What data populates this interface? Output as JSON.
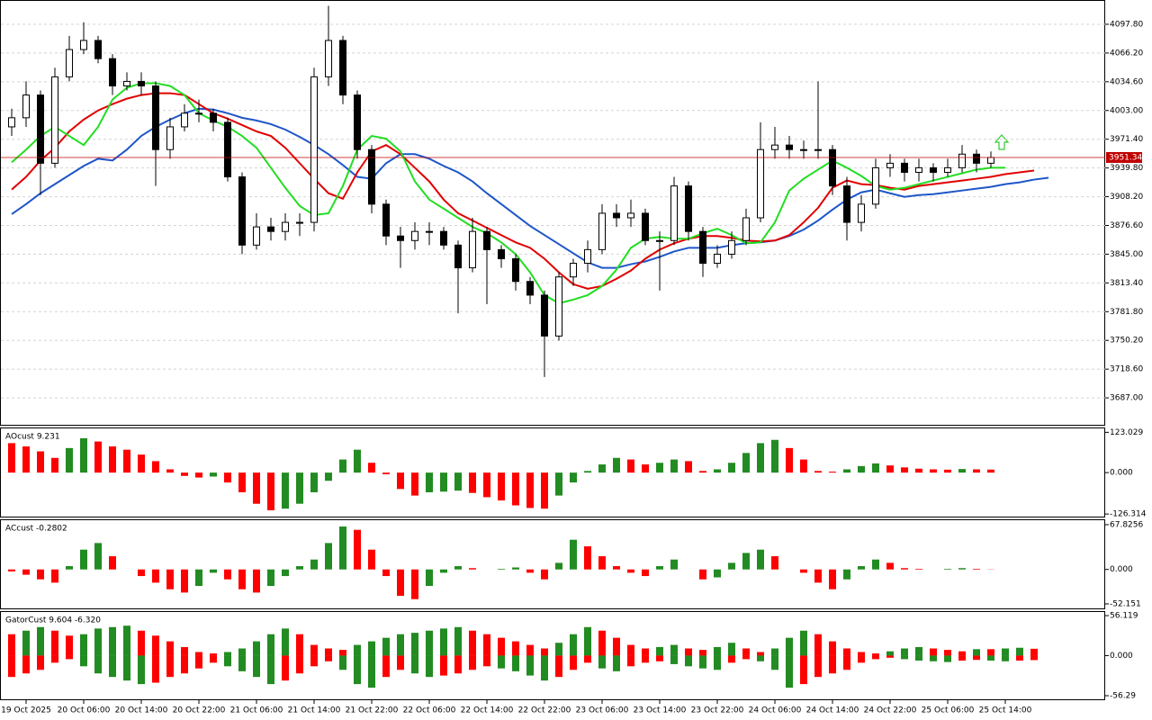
{
  "chart_data": [
    {
      "type": "candlestick",
      "categories": [
        null,
        "19 Oct 2025",
        null,
        null,
        null,
        "20 Oct 06:00",
        null,
        null,
        null,
        "20 Oct 14:00",
        null,
        null,
        null,
        "20 Oct 22:00",
        null,
        null,
        null,
        "21 Oct 06:00",
        null,
        null,
        null,
        "21 Oct 14:00",
        null,
        null,
        null,
        "21 Oct 22:00",
        null,
        null,
        null,
        "22 Oct 06:00",
        null,
        null,
        null,
        "22 Oct 14:00",
        null,
        null,
        null,
        "22 Oct 22:00",
        null,
        null,
        null,
        "23 Oct 06:00",
        null,
        null,
        null,
        "23 Oct 14:00",
        null,
        null,
        null,
        "23 Oct 22:00",
        null,
        null,
        null,
        "24 Oct 06:00",
        null,
        null,
        null,
        "24 Oct 14:00",
        null,
        null,
        null,
        "24 Oct 22:00",
        null,
        null,
        null,
        "25 Oct 06:00",
        null,
        null,
        null,
        "25 Oct 14:00",
        null,
        null,
        null
      ],
      "open": [
        3985,
        3995,
        4020,
        3945,
        4040,
        4070,
        4080,
        4060,
        4030,
        4035,
        4030,
        3960,
        3985,
        4000,
        4000,
        3990,
        3930,
        3855,
        3875,
        3870,
        3880,
        3880,
        4040,
        4080,
        4020,
        3960,
        3900,
        3865,
        3860,
        3870,
        3870,
        3855,
        3830,
        3870,
        3850,
        3840,
        3815,
        3800,
        3755,
        3820,
        3835,
        3850,
        3890,
        3885,
        3890,
        3860,
        3860,
        3920,
        3870,
        3835,
        3845,
        3860,
        3885,
        3960,
        3965,
        3960,
        3960,
        3960,
        3920,
        3880,
        3900,
        3940,
        3945,
        3935,
        3940,
        3935,
        3940,
        3955,
        3945,
        null,
        null,
        null,
        null
      ],
      "high": [
        4005,
        4035,
        4025,
        4050,
        4085,
        4100,
        4085,
        4065,
        4045,
        4045,
        4035,
        3995,
        4010,
        4015,
        4005,
        3995,
        3935,
        3890,
        3885,
        3890,
        3890,
        4050,
        4118,
        4085,
        4025,
        3965,
        3905,
        3875,
        3880,
        3880,
        3875,
        3860,
        3885,
        3875,
        3855,
        3845,
        3820,
        3805,
        3825,
        3840,
        3860,
        3900,
        3900,
        3905,
        3895,
        3870,
        3930,
        3925,
        3875,
        3855,
        3870,
        3895,
        3990,
        3985,
        3975,
        3970,
        4035,
        3965,
        3930,
        3910,
        3950,
        3955,
        3950,
        3950,
        3945,
        3950,
        3965,
        3960,
        3958,
        null,
        null,
        null,
        null
      ],
      "low": [
        3975,
        3985,
        3910,
        3940,
        4035,
        4065,
        4055,
        4020,
        4025,
        4020,
        3920,
        3950,
        3980,
        3990,
        3980,
        3925,
        3845,
        3850,
        3860,
        3860,
        3865,
        3870,
        4030,
        4010,
        3950,
        3890,
        3855,
        3830,
        3850,
        3855,
        3850,
        3780,
        3825,
        3790,
        3830,
        3805,
        3790,
        3710,
        3750,
        3810,
        3825,
        3845,
        3875,
        3875,
        3855,
        3805,
        3855,
        3860,
        3820,
        3830,
        3840,
        3855,
        3880,
        3950,
        3950,
        3950,
        3950,
        3910,
        3860,
        3870,
        3895,
        3930,
        3925,
        3925,
        3925,
        3930,
        3935,
        3935,
        3940,
        null,
        null,
        null,
        null
      ],
      "close": [
        3995,
        4020,
        3945,
        4040,
        4070,
        4080,
        4060,
        4030,
        4035,
        4030,
        3960,
        3985,
        4000,
        4000,
        3990,
        3930,
        3855,
        3875,
        3870,
        3880,
        3880,
        4040,
        4080,
        4020,
        3960,
        3900,
        3865,
        3860,
        3870,
        3870,
        3855,
        3830,
        3870,
        3850,
        3840,
        3815,
        3800,
        3755,
        3820,
        3835,
        3850,
        3890,
        3885,
        3890,
        3860,
        3860,
        3920,
        3870,
        3835,
        3845,
        3860,
        3885,
        3960,
        3965,
        3960,
        3960,
        3960,
        3920,
        3880,
        3900,
        3940,
        3945,
        3935,
        3940,
        3935,
        3940,
        3955,
        3945,
        3951.34,
        null,
        null,
        null,
        null
      ],
      "up_color": "#ffffff",
      "down_color": "#000000",
      "outline_color": "#000000",
      "series": [
        {
          "color": "#1e56c8",
          "values": [
            3889,
            3900,
            3912,
            3922,
            3932,
            3942,
            3950,
            3948,
            3960,
            3975,
            3985,
            3993,
            4000,
            4005,
            4004,
            4000,
            3995,
            3992,
            3988,
            3982,
            3974,
            3965,
            3955,
            3943,
            3930,
            3928,
            3945,
            3955,
            3955,
            3950,
            3942,
            3935,
            3925,
            3912,
            3900,
            3888,
            3876,
            3866,
            3856,
            3846,
            3836,
            3830,
            3830,
            3834,
            3837,
            3842,
            3848,
            3852,
            3852,
            3852,
            3855,
            3857,
            3858,
            3860,
            3865,
            3872,
            3882,
            3894,
            3905,
            3913,
            3916,
            3912,
            3908,
            3910,
            3911,
            3913,
            3915,
            3917,
            3919,
            3922,
            3924,
            3927,
            3929
          ]
        },
        {
          "color": "#e00000",
          "values": [
            3916,
            3930,
            3948,
            3962,
            3980,
            3993,
            4003,
            4010,
            4016,
            4020,
            4022,
            4022,
            4020,
            4010,
            4000,
            3994,
            3987,
            3980,
            3975,
            3962,
            3945,
            3928,
            3912,
            3906,
            3935,
            3958,
            3965,
            3955,
            3940,
            3925,
            3905,
            3890,
            3882,
            3874,
            3866,
            3858,
            3852,
            3840,
            3825,
            3812,
            3807,
            3810,
            3818,
            3827,
            3840,
            3850,
            3857,
            3862,
            3865,
            3865,
            3863,
            3860,
            3859,
            3860,
            3866,
            3880,
            3896,
            3918,
            3926,
            3922,
            3921,
            3918,
            3916,
            3920,
            3922,
            3924,
            3926,
            3928,
            3930,
            3933,
            3935,
            3937,
            null
          ]
        },
        {
          "color": "#22dd22",
          "values": [
            3946,
            3960,
            3975,
            3985,
            3975,
            3965,
            3985,
            4015,
            4028,
            4033,
            4033,
            4030,
            4020,
            4000,
            3992,
            3985,
            3975,
            3962,
            3940,
            3918,
            3898,
            3888,
            3890,
            3920,
            3960,
            3975,
            3972,
            3958,
            3925,
            3905,
            3895,
            3885,
            3875,
            3868,
            3858,
            3845,
            3825,
            3800,
            3791,
            3795,
            3800,
            3810,
            3828,
            3852,
            3862,
            3864,
            3862,
            3862,
            3868,
            3873,
            3866,
            3857,
            3858,
            3880,
            3915,
            3928,
            3938,
            3948,
            3940,
            3931,
            3920,
            3916,
            3918,
            3922,
            3926,
            3930,
            3934,
            3938,
            3940,
            3940,
            null,
            null,
            null
          ]
        }
      ],
      "current_price": 3951.34,
      "current_price_color": "#c00000",
      "ylim": [
        3657.4,
        4123.5
      ],
      "yticks": [
        {
          "value": 4097.8,
          "label": "4097.80"
        },
        {
          "value": 4066.2,
          "label": "4066.20"
        },
        {
          "value": 4034.6,
          "label": "4034.60"
        },
        {
          "value": 4003,
          "label": "4003.00"
        },
        {
          "value": 3971.4,
          "label": "3971.40"
        },
        {
          "value": 3939.8,
          "label": "3939.80"
        },
        {
          "value": 3908.2,
          "label": "3908.20"
        },
        {
          "value": 3876.6,
          "label": "3876.60"
        },
        {
          "value": 3845,
          "label": "3845.00"
        },
        {
          "value": 3813.4,
          "label": "3813.40"
        },
        {
          "value": 3781.8,
          "label": "3781.80"
        },
        {
          "value": 3750.2,
          "label": "3750.20"
        },
        {
          "value": 3718.6,
          "label": "3718.60"
        },
        {
          "value": 3687,
          "label": "3687.00"
        }
      ],
      "grid": true
    },
    {
      "type": "bar",
      "title": "AOcust 9.231",
      "up_color": "#228b22",
      "down_color": "#ff0000",
      "values": [
        90,
        80,
        65,
        45,
        75,
        105,
        95,
        80,
        70,
        55,
        35,
        10,
        -10,
        -15,
        -12,
        -30,
        -60,
        -95,
        -115,
        -110,
        -95,
        -60,
        -25,
        40,
        70,
        30,
        -5,
        -50,
        -70,
        -60,
        -58,
        -55,
        -62,
        -75,
        -85,
        -100,
        -108,
        -110,
        -70,
        -30,
        5,
        25,
        45,
        40,
        25,
        30,
        40,
        35,
        5,
        10,
        30,
        60,
        90,
        100,
        75,
        40,
        5,
        3,
        10,
        20,
        28,
        22,
        16,
        12,
        10,
        9,
        11,
        10,
        9.231,
        null,
        null,
        null,
        null
      ],
      "ylim": [
        -137,
        135
      ],
      "yticks": [
        123.029,
        {
          "value": 0,
          "label": "0.000"
        },
        -126.314
      ]
    },
    {
      "type": "bar",
      "title": "ACcust -0.2802",
      "up_color": "#228b22",
      "down_color": "#ff0000",
      "values": [
        -3,
        -8,
        -15,
        -20,
        5,
        30,
        40,
        20,
        0,
        -10,
        -20,
        -30,
        -35,
        -25,
        -5,
        -15,
        -30,
        -35,
        -25,
        -10,
        5,
        15,
        40,
        65,
        60,
        30,
        -10,
        -40,
        -45,
        -25,
        -5,
        5,
        2,
        0,
        1,
        3,
        -5,
        -15,
        10,
        45,
        35,
        20,
        5,
        -5,
        -10,
        5,
        15,
        0,
        -15,
        -12,
        10,
        25,
        30,
        20,
        0,
        -5,
        -20,
        -30,
        -15,
        5,
        15,
        10,
        2,
        1,
        0,
        1,
        2,
        1,
        -0.2802,
        null,
        null,
        null,
        null
      ],
      "ylim": [
        -59,
        74.6
      ],
      "yticks": [
        67.8256,
        {
          "value": 0,
          "label": "0.000"
        },
        -52.151
      ]
    },
    {
      "type": "gator",
      "title": "GatorCust 9.604 -6.320",
      "up_color": "#228b22",
      "down_color": "#ff0000",
      "series": [
        {
          "values": [
            30,
            35,
            40,
            35,
            28,
            30,
            38,
            40,
            42,
            35,
            28,
            20,
            12,
            5,
            3,
            5,
            10,
            20,
            30,
            38,
            30,
            15,
            10,
            8,
            15,
            20,
            25,
            30,
            32,
            35,
            38,
            40,
            35,
            30,
            25,
            20,
            15,
            10,
            18,
            30,
            40,
            35,
            25,
            15,
            10,
            12,
            15,
            10,
            8,
            12,
            18,
            10,
            5,
            10,
            25,
            35,
            30,
            20,
            10,
            5,
            3,
            6,
            10,
            12,
            10,
            8,
            6,
            9,
            9,
            10,
            11,
            9.604,
            null
          ]
        },
        {
          "values": [
            -30,
            -25,
            -20,
            -10,
            -5,
            -15,
            -25,
            -30,
            -35,
            -40,
            -38,
            -30,
            -25,
            -18,
            -10,
            -15,
            -22,
            -30,
            -40,
            -35,
            -25,
            -15,
            -8,
            -20,
            -40,
            -45,
            -30,
            -20,
            -25,
            -30,
            -28,
            -25,
            -20,
            -15,
            -18,
            -22,
            -28,
            -35,
            -30,
            -20,
            -10,
            -18,
            -22,
            -15,
            -10,
            -8,
            -12,
            -15,
            -18,
            -20,
            -10,
            -5,
            -8,
            -20,
            -45,
            -40,
            -30,
            -25,
            -20,
            -10,
            -5,
            -3,
            -5,
            -7,
            -8,
            -9,
            -7,
            -6,
            -7,
            -8,
            -7,
            -6.32,
            null
          ]
        }
      ],
      "ylim": [
        -62.6,
        61.2
      ],
      "yticks": [
        56.119,
        {
          "value": 0,
          "label": "0.000"
        },
        -56.29
      ]
    }
  ]
}
